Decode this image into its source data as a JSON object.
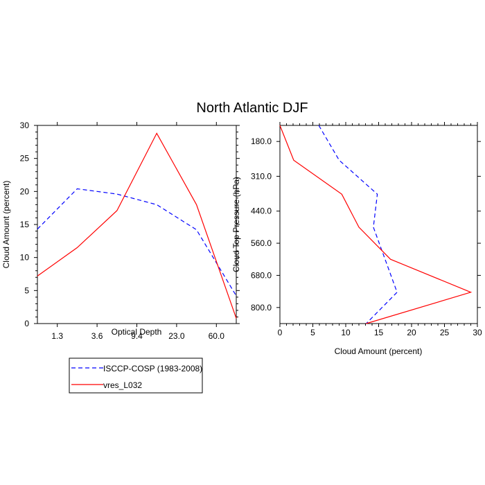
{
  "title": "North Atlantic DJF",
  "legend": {
    "entries": [
      {
        "label": "ISCCP-COSP (1983-2008)",
        "color": "#0000ff",
        "dash": true
      },
      {
        "label": "vres_L032",
        "color": "#ff0000",
        "dash": false
      }
    ]
  },
  "chart_data": [
    {
      "type": "line",
      "xlabel": "Optical Depth",
      "ylabel": "Cloud Amount (percent)",
      "x_tick_labels": [
        "1.3",
        "3.6",
        "9.4",
        "23.0",
        "60.0"
      ],
      "ylim": [
        0,
        30
      ],
      "y_ticks": [
        0,
        5,
        10,
        15,
        20,
        25,
        30
      ],
      "series": [
        {
          "name": "ISCCP-COSP (1983-2008)",
          "color": "#0000ff",
          "points": [
            [
              0.0,
              14.3
            ],
            [
              1.0,
              20.4
            ],
            [
              2.0,
              19.6
            ],
            [
              3.0,
              18.0
            ],
            [
              4.0,
              14.2
            ],
            [
              5.0,
              4.2
            ]
          ]
        },
        {
          "name": "vres_L032",
          "color": "#ff0000",
          "points": [
            [
              0.0,
              7.2
            ],
            [
              1.0,
              11.5
            ],
            [
              2.0,
              17.1
            ],
            [
              3.0,
              28.8
            ],
            [
              4.0,
              18.0
            ],
            [
              5.0,
              0.8
            ]
          ]
        }
      ]
    },
    {
      "type": "line",
      "xlabel": "Cloud Amount (percent)",
      "ylabel": "Cloud Top Pressure (hPa)",
      "xlim": [
        0,
        30
      ],
      "x_ticks": [
        0,
        5,
        10,
        15,
        20,
        25,
        30
      ],
      "y_tick_labels": [
        "180.0",
        "310.0",
        "440.0",
        "560.0",
        "680.0",
        "800.0"
      ],
      "y_tick_values": [
        180,
        310,
        440,
        560,
        680,
        800
      ],
      "ylim": [
        120,
        860
      ],
      "series": [
        {
          "name": "ISCCP-COSP (1983-2008)",
          "color": "#0000ff",
          "points": [
            [
              5.9,
              120
            ],
            [
              9.0,
              250
            ],
            [
              14.8,
              377
            ],
            [
              14.2,
              500
            ],
            [
              17.8,
              743
            ],
            [
              13.1,
              860
            ]
          ]
        },
        {
          "name": "vres_L032",
          "color": "#ff0000",
          "points": [
            [
              0.0,
              120
            ],
            [
              2.1,
              250
            ],
            [
              9.4,
              377
            ],
            [
              12.0,
              500
            ],
            [
              16.8,
              620
            ],
            [
              29.0,
              743
            ],
            [
              13.1,
              860
            ]
          ]
        }
      ]
    }
  ]
}
